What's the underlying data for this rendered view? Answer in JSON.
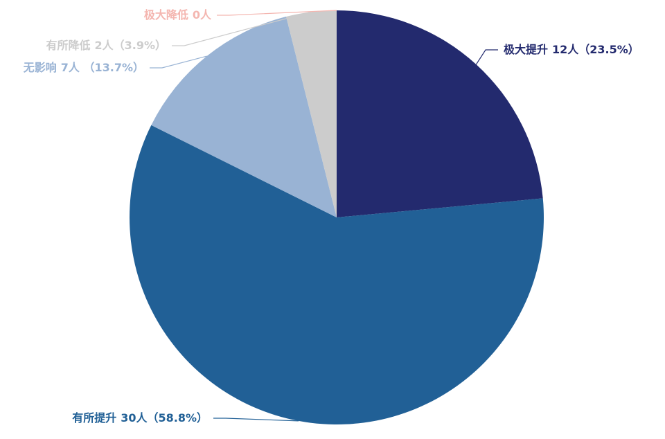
{
  "chart_data": {
    "type": "pie",
    "categories": [
      "极大提升",
      "有所提升",
      "无影响",
      "有所降低",
      "极大降低"
    ],
    "values": [
      12,
      30,
      7,
      2,
      0
    ],
    "value_labels": [
      "12人（23.5%）",
      "30人（58.8%）",
      "7人 （13.7%）",
      "2人（3.9%）",
      "0人"
    ],
    "colors": [
      "#232a6e",
      "#216096",
      "#99b3d4",
      "#cccccc",
      "#f4b6b0"
    ]
  }
}
